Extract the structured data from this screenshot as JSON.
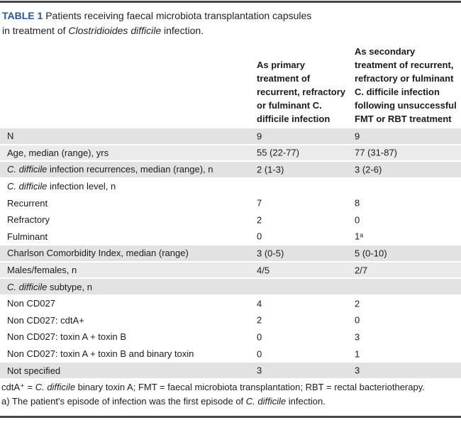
{
  "title": {
    "label": "TABLE 1",
    "line1_rest": " Patients receiving faecal microbiota transplantation capsules",
    "line2_before": "in treatment of ",
    "line2_italic": "Clostridioides difficile",
    "line2_after": " infection."
  },
  "columns": [
    {
      "header": "As primary\ntreatment of\nrecurrent, refractory\nor fulminant C.\ndifficile infection"
    },
    {
      "header": "As secondary\ntreatment of recurrent,\nrefractory or fulminant\nC. difficile infection\nfollowing unsuccessful\nFMT or RBT treatment"
    }
  ],
  "rows": [
    {
      "italic": "",
      "label": "N",
      "primary": "9",
      "secondary": "9",
      "shade": "dark"
    },
    {
      "italic": "",
      "label": "Age, median (range), yrs",
      "primary": "55 (22-77)",
      "secondary": "77 (31-87)",
      "shade": "light"
    },
    {
      "italic": "C. difficile",
      "label": " infection recurrences, median (range), n",
      "primary": "2 (1-3)",
      "secondary": "3 (2-6)",
      "shade": "dark"
    },
    {
      "italic": "C. difficile",
      "label": " infection level, n",
      "primary": "",
      "secondary": "",
      "shade": "white"
    },
    {
      "italic": "",
      "label": "Recurrent",
      "primary": "7",
      "secondary": "8",
      "shade": "white"
    },
    {
      "italic": "",
      "label": "Refractory",
      "primary": "2",
      "secondary": "0",
      "shade": "white"
    },
    {
      "italic": "",
      "label": "Fulminant",
      "primary": "0",
      "secondary": "1ᵃ",
      "shade": "white"
    },
    {
      "italic": "",
      "label": "Charlson Comorbidity Index, median (range)",
      "primary": "3 (0-5)",
      "secondary": "5 (0-10)",
      "shade": "dark"
    },
    {
      "italic": "",
      "label": "Males/females, n",
      "primary": "4/5",
      "secondary": "2/7",
      "shade": "light"
    },
    {
      "italic": "C. difficile",
      "label": " subtype, n",
      "primary": "",
      "secondary": "",
      "shade": "dark"
    },
    {
      "italic": "",
      "label": "Non CD027",
      "primary": "4",
      "secondary": "2",
      "shade": "white"
    },
    {
      "italic": "",
      "label": "Non CD027: cdtA+",
      "primary": "2",
      "secondary": "0",
      "shade": "white"
    },
    {
      "italic": "",
      "label": "Non CD027: toxin A + toxin B",
      "primary": "0",
      "secondary": "3",
      "shade": "white"
    },
    {
      "italic": "",
      "label": "Non CD027: toxin A + toxin B and binary toxin",
      "primary": "0",
      "secondary": "1",
      "shade": "white"
    },
    {
      "italic": "",
      "label": "Not specified",
      "primary": "3",
      "secondary": "3",
      "shade": "dark"
    }
  ],
  "footnotes": [
    {
      "before": "cdtA⁺ = ",
      "italic": "C. difficile",
      "after": " binary toxin A; FMT = faecal microbiota transplantation; RBT = rectal bacteriotherapy."
    },
    {
      "before": "a) The patient's episode of infection was the first episode of ",
      "italic": "C. difficile",
      "after": " infection."
    }
  ],
  "colors": {
    "accent_blue": "#2a5699",
    "row_gray_dark": "#e2e2e2",
    "row_gray_light": "#eaeaea",
    "rule_gray": "#474747"
  }
}
